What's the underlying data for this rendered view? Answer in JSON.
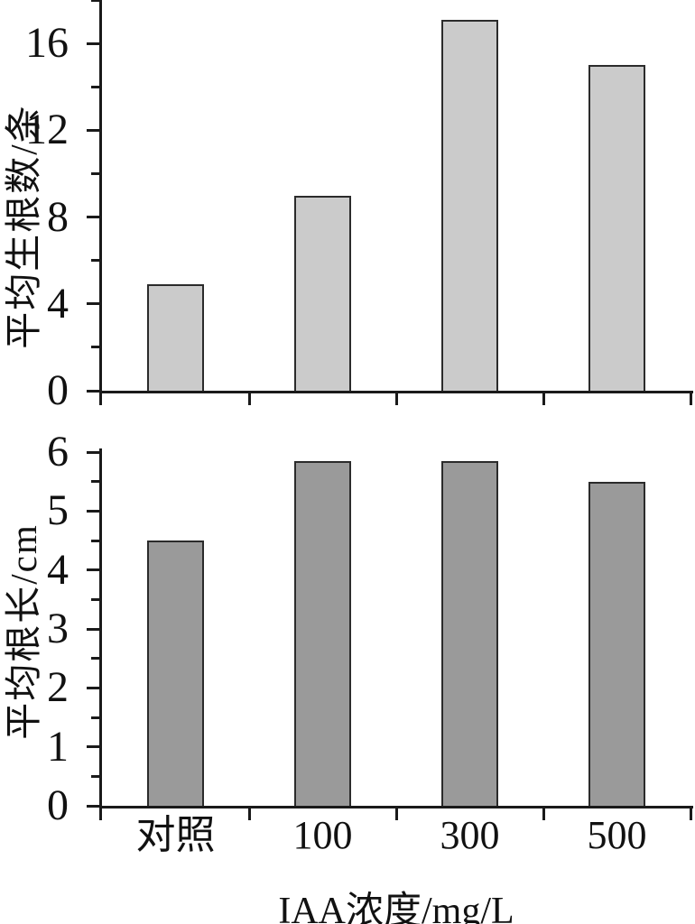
{
  "figure_type": "two-panel bar chart",
  "xlabel": "IAA浓度/mg/L",
  "colors": {
    "background": "#ffffff",
    "axis": "#1a1a1a",
    "text": "#111111",
    "top_bar_fill": "#cbcbcb",
    "bottom_bar_fill": "#9a9a9a",
    "bar_border": "#2b2b2b"
  },
  "chart_data": [
    {
      "type": "bar",
      "panel": "top",
      "title": "",
      "ylabel": "平均生根数/条",
      "xlabel": "",
      "categories": [
        "对照",
        "100",
        "300",
        "500"
      ],
      "values": [
        4.9,
        9.0,
        17.1,
        15.0
      ],
      "ylim": [
        0,
        18
      ],
      "yticks_labeled": [
        "0",
        "4",
        "8",
        "12",
        "16"
      ],
      "ytick_major_step": 4,
      "ytick_minor_step": 2,
      "grid": false,
      "legend": null,
      "bar_fill": "#cbcbcb",
      "bar_border": "#2b2b2b",
      "show_category_labels": false
    },
    {
      "type": "bar",
      "panel": "bottom",
      "title": "",
      "ylabel": "平均根长/cm",
      "xlabel": "IAA浓度/mg/L",
      "categories": [
        "对照",
        "100",
        "300",
        "500"
      ],
      "values": [
        4.5,
        5.85,
        5.85,
        5.5
      ],
      "ylim": [
        0,
        6
      ],
      "yticks_labeled": [
        "0",
        "1",
        "2",
        "3",
        "4",
        "5",
        "6"
      ],
      "ytick_major_step": 1,
      "ytick_minor_step": 0.5,
      "grid": false,
      "legend": null,
      "bar_fill": "#9a9a9a",
      "bar_border": "#2b2b2b",
      "show_category_labels": true
    }
  ]
}
